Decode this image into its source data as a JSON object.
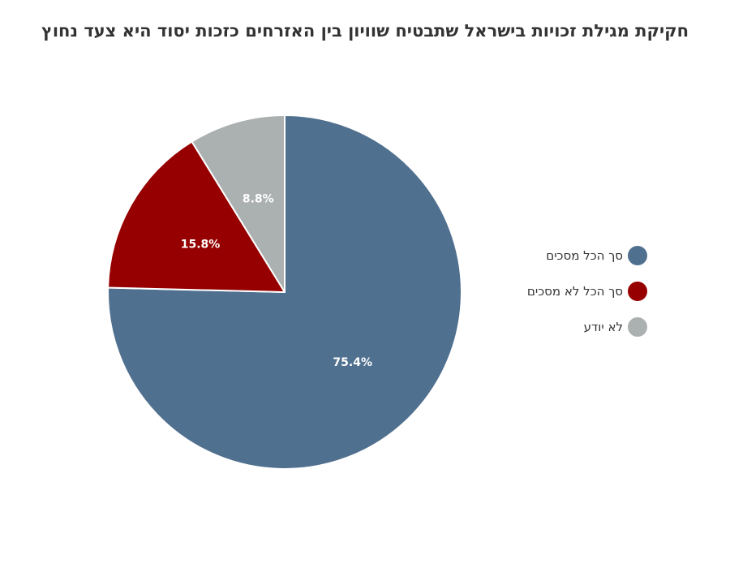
{
  "chart_data": {
    "type": "pie",
    "title": "חקיקת מגילת זכויות בישראל שתבטיח שוויון בין האזרחים כזכות יסוד היא צעד נחוץ",
    "legend_position": "right",
    "slices": [
      {
        "label": "סך הכל מסכים",
        "value": 75.4,
        "display": "75.4%",
        "color": "#50708f"
      },
      {
        "label": "סך הכל לא מסכים",
        "value": 15.8,
        "display": "15.8%",
        "color": "#960000"
      },
      {
        "label": "לא יודע",
        "value": 8.8,
        "display": "8.8%",
        "color": "#abb0b0"
      }
    ]
  }
}
